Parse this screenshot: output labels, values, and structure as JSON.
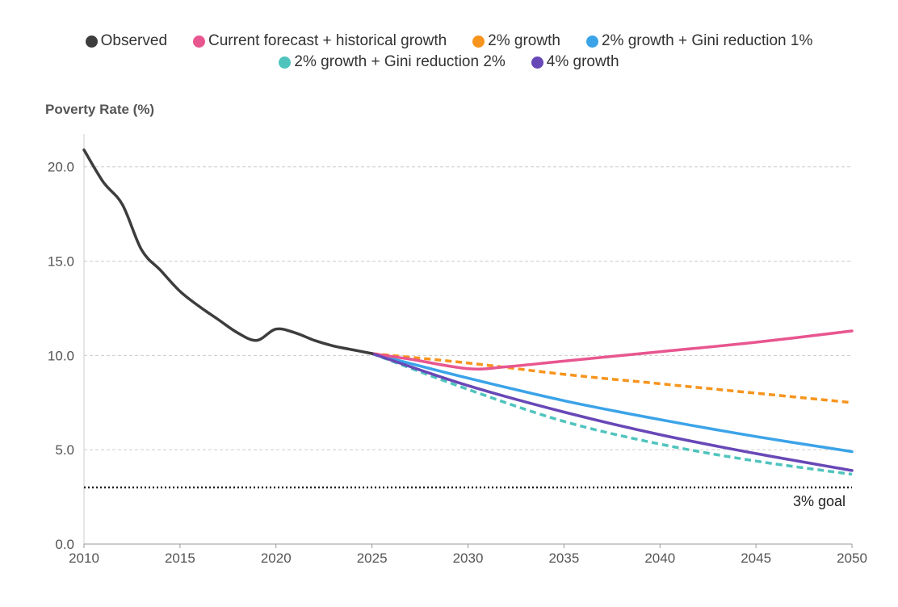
{
  "chart_data": {
    "type": "line",
    "title": "",
    "xlabel": "",
    "ylabel": "Poverty Rate (%)",
    "xlim": [
      2010,
      2050
    ],
    "ylim": [
      0,
      22
    ],
    "x_ticks": [
      "2010",
      "2015",
      "2020",
      "2025",
      "2030",
      "2035",
      "2040",
      "2045",
      "2050"
    ],
    "y_ticks": [
      "0.0",
      "5.0",
      "10.0",
      "15.0",
      "20.0"
    ],
    "grid": "horizontal dashed",
    "legend_position": "top-center",
    "series": [
      {
        "name": "Observed",
        "color": "#3d3d3d",
        "dash": false,
        "points": [
          [
            2010,
            20.9
          ],
          [
            2011,
            19.2
          ],
          [
            2012,
            18.0
          ],
          [
            2013,
            15.6
          ],
          [
            2014,
            14.5
          ],
          [
            2015,
            13.4
          ],
          [
            2016,
            12.6
          ],
          [
            2017,
            11.9
          ],
          [
            2018,
            11.2
          ],
          [
            2019,
            10.8
          ],
          [
            2020,
            11.4
          ],
          [
            2021,
            11.2
          ],
          [
            2022,
            10.8
          ],
          [
            2023,
            10.5
          ],
          [
            2024,
            10.3
          ],
          [
            2025,
            10.1
          ]
        ]
      },
      {
        "name": "Current forecast + historical growth",
        "color": "#e8568f",
        "dash": false,
        "points": [
          [
            2025,
            10.1
          ],
          [
            2027,
            9.8
          ],
          [
            2030,
            9.3
          ],
          [
            2032,
            9.4
          ],
          [
            2035,
            9.7
          ],
          [
            2040,
            10.2
          ],
          [
            2045,
            10.7
          ],
          [
            2050,
            11.3
          ]
        ]
      },
      {
        "name": "2% growth",
        "color": "#f7941d",
        "dash": true,
        "points": [
          [
            2025,
            10.1
          ],
          [
            2030,
            9.6
          ],
          [
            2035,
            9.0
          ],
          [
            2040,
            8.5
          ],
          [
            2045,
            8.0
          ],
          [
            2050,
            7.5
          ]
        ]
      },
      {
        "name": "2% growth + Gini reduction 1%",
        "color": "#3ba3e8",
        "dash": false,
        "points": [
          [
            2025,
            10.1
          ],
          [
            2030,
            8.8
          ],
          [
            2035,
            7.6
          ],
          [
            2040,
            6.6
          ],
          [
            2045,
            5.7
          ],
          [
            2050,
            4.9
          ]
        ]
      },
      {
        "name": "2% growth + Gini reduction 2%",
        "color": "#4fc4bd",
        "dash": true,
        "points": [
          [
            2025,
            10.1
          ],
          [
            2030,
            8.2
          ],
          [
            2035,
            6.5
          ],
          [
            2040,
            5.3
          ],
          [
            2045,
            4.4
          ],
          [
            2050,
            3.7
          ]
        ]
      },
      {
        "name": "4% growth",
        "color": "#6848b7",
        "dash": false,
        "points": [
          [
            2025,
            10.1
          ],
          [
            2030,
            8.4
          ],
          [
            2035,
            7.0
          ],
          [
            2040,
            5.8
          ],
          [
            2045,
            4.8
          ],
          [
            2050,
            3.9
          ]
        ]
      }
    ],
    "reference_lines": [
      {
        "y": 3,
        "label": "3% goal",
        "style": "dotted",
        "color": "#222222"
      }
    ]
  }
}
